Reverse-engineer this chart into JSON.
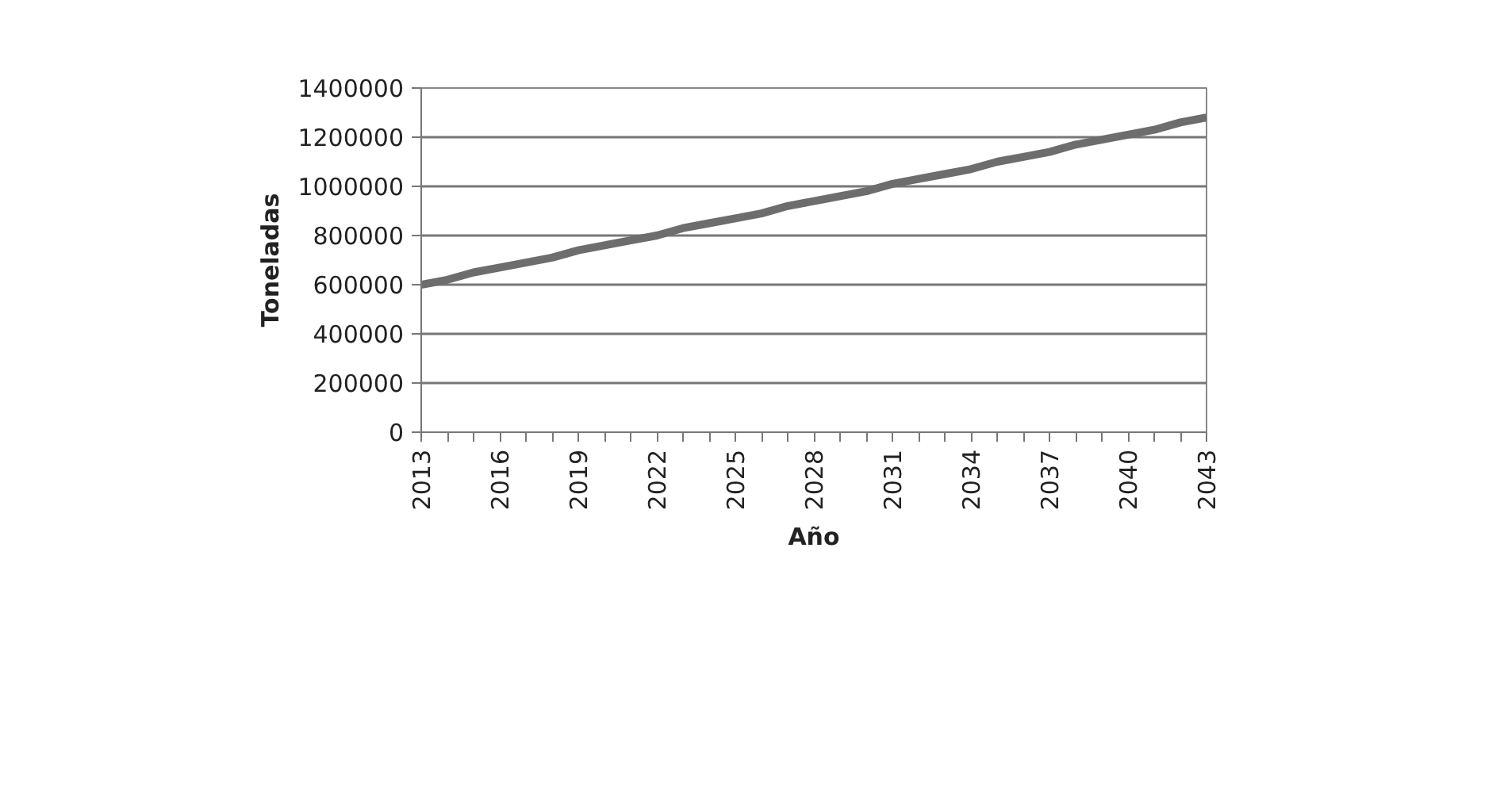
{
  "chart_data": {
    "type": "line",
    "xlabel": "Año",
    "ylabel": "Toneladas",
    "categories": [
      "2013",
      null,
      null,
      "2016",
      null,
      null,
      "2019",
      null,
      null,
      "2022",
      null,
      null,
      "2025",
      null,
      null,
      "2028",
      null,
      null,
      "2031",
      null,
      null,
      "2034",
      null,
      null,
      "2037",
      null,
      null,
      "2040",
      null,
      null,
      "2043"
    ],
    "series": [
      {
        "color": "#6d6d6d",
        "values": [
          600000,
          620000,
          650000,
          670000,
          690000,
          710000,
          740000,
          760000,
          780000,
          800000,
          830000,
          850000,
          870000,
          890000,
          920000,
          940000,
          960000,
          980000,
          1010000,
          1030000,
          1050000,
          1070000,
          1100000,
          1120000,
          1140000,
          1170000,
          1190000,
          1210000,
          1230000,
          1260000,
          1280000
        ]
      }
    ],
    "ylim": [
      0,
      1400000
    ],
    "yticks": [
      0,
      200000,
      400000,
      600000,
      800000,
      1000000,
      1200000,
      1400000
    ],
    "grid": "y",
    "marker": "none",
    "line_style": "solid"
  }
}
